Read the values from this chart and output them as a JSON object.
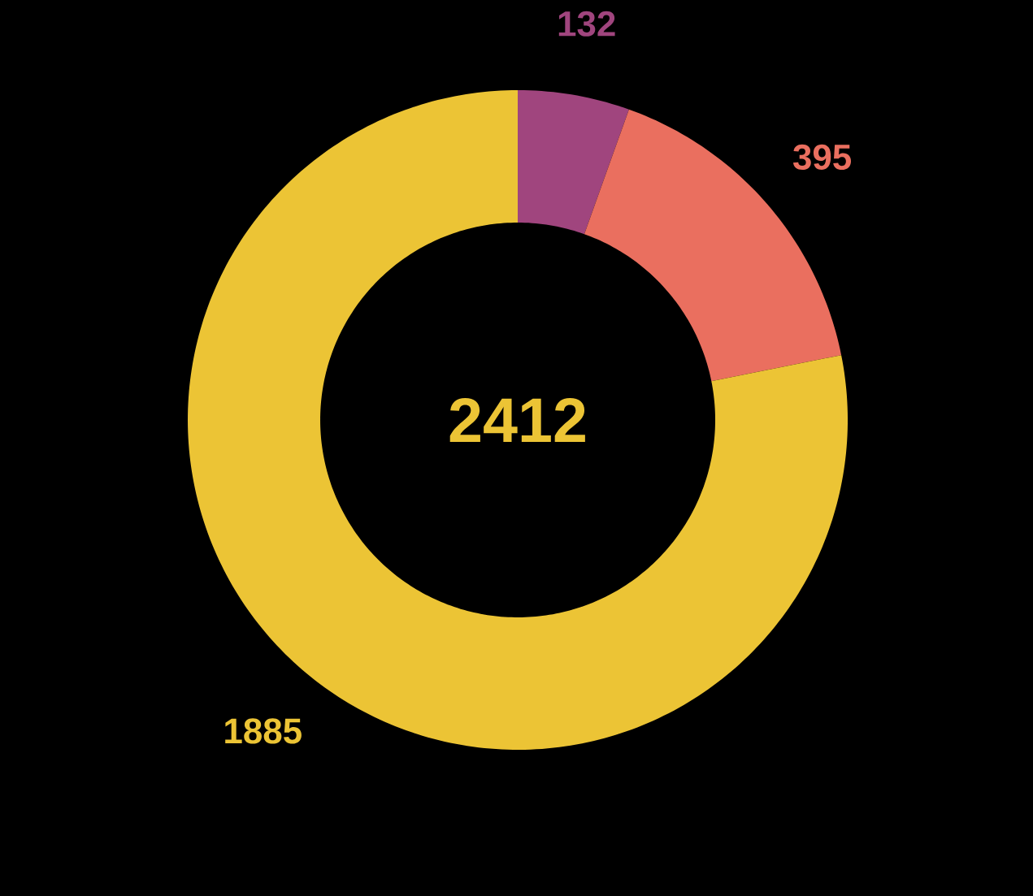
{
  "chart_data": {
    "type": "donut",
    "categories": [
      null,
      null,
      null
    ],
    "values": [
      132,
      395,
      1885
    ],
    "colors": [
      "#a0457e",
      "#ea6f5f",
      "#ecc435"
    ],
    "data_labels": true,
    "annotations": [
      "2412"
    ]
  }
}
